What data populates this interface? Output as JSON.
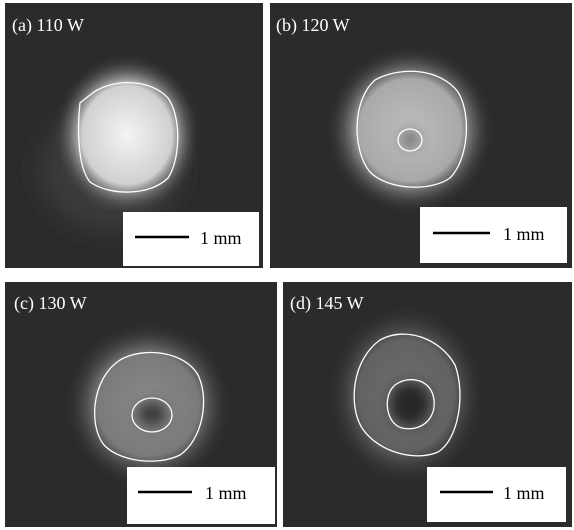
{
  "panels": [
    {
      "label": "(a) 110 W",
      "scale_bar": "1 mm"
    },
    {
      "label": "(b) 120 W",
      "scale_bar": "1 mm"
    },
    {
      "label": "(c) 130 W",
      "scale_bar": "1 mm"
    },
    {
      "label": "(d) 145 W",
      "scale_bar": "1 mm"
    }
  ]
}
